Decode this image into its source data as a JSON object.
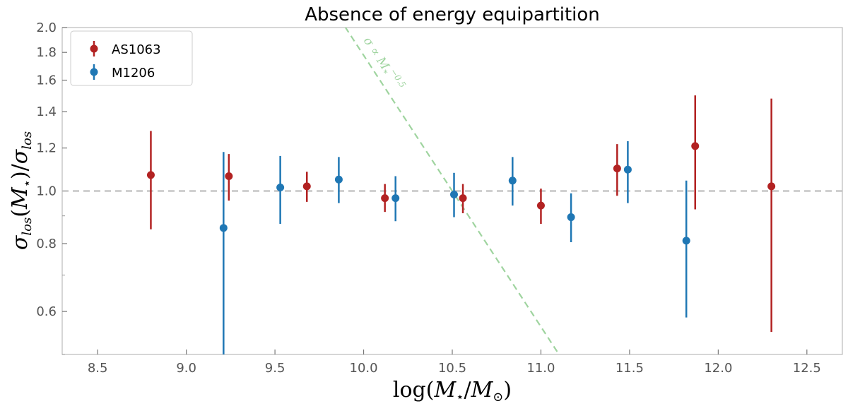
{
  "chart_data": {
    "type": "scatter",
    "title": "Absence of energy equipartition",
    "xlabel_parts": {
      "pre": "log(",
      "m": "M",
      "star": "⋆",
      "mid": "/",
      "m2": "M",
      "sun": "⊙",
      "post": ")"
    },
    "ylabel_parts": {
      "s1": "σ",
      "sub1": "los",
      "p1": "(",
      "m": "M",
      "star": "⋆",
      "p2": ")/",
      "s2": "σ",
      "sub2": "los"
    },
    "xlim": [
      8.3,
      12.7
    ],
    "ylim": [
      0.5,
      2.0
    ],
    "yscale": "log",
    "xticks": [
      "8.5",
      "9.0",
      "9.5",
      "10.0",
      "10.5",
      "11.0",
      "11.5",
      "12.0",
      "12.5"
    ],
    "yticks": [
      "0.6",
      "0.8",
      "1.0",
      "1.2",
      "1.4",
      "1.6",
      "1.8",
      "2.0"
    ],
    "legend_position": "top-left",
    "reference_line": {
      "y": 1.0,
      "style": "dashed",
      "color": "#b5b5b5"
    },
    "model_line": {
      "label_parts": {
        "s": "σ",
        "prop": " ∝ ",
        "m": "M",
        "sub": "*",
        "exp": "−0.5"
      },
      "exponent": -0.5,
      "pivot_x": 10.5,
      "pivot_y": 1.0,
      "color": "#9fd49f"
    },
    "series": [
      {
        "name": "AS1063",
        "color": "#b22222",
        "x": [
          8.8,
          9.24,
          9.68,
          10.12,
          10.56,
          11.0,
          11.43,
          11.87,
          12.3
        ],
        "y": [
          1.07,
          1.065,
          1.02,
          0.97,
          0.97,
          0.94,
          1.1,
          1.21,
          1.02
        ],
        "ylo": [
          0.85,
          0.96,
          0.955,
          0.915,
          0.91,
          0.87,
          0.98,
          0.925,
          0.55
        ],
        "yhi": [
          1.29,
          1.17,
          1.085,
          1.03,
          1.03,
          1.01,
          1.22,
          1.5,
          1.48
        ]
      },
      {
        "name": "M1206",
        "color": "#1f77b4",
        "x": [
          9.21,
          9.53,
          9.86,
          10.18,
          10.51,
          10.84,
          11.17,
          11.49,
          11.82
        ],
        "y": [
          0.855,
          1.015,
          1.05,
          0.97,
          0.985,
          1.045,
          0.895,
          1.095,
          0.81
        ],
        "ylo": [
          0.5,
          0.87,
          0.95,
          0.88,
          0.895,
          0.94,
          0.805,
          0.95,
          0.585
        ],
        "yhi": [
          1.18,
          1.16,
          1.155,
          1.065,
          1.08,
          1.155,
          0.99,
          1.235,
          1.045
        ]
      }
    ]
  }
}
